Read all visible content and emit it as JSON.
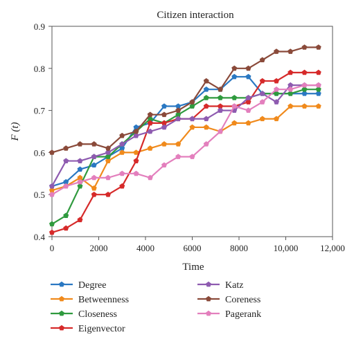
{
  "chart_data": {
    "type": "line",
    "title": "Citizen interaction",
    "xlabel": "Time",
    "ylabel": "F (t)",
    "xlim": [
      0,
      12000
    ],
    "ylim": [
      0.4,
      0.9
    ],
    "x_ticks": [
      "0",
      "2000",
      "4000",
      "6000",
      "8000",
      "10,000",
      "12,000"
    ],
    "y_ticks": [
      "0.4",
      "0.5",
      "0.6",
      "0.7",
      "0.8",
      "0.9"
    ],
    "x": [
      0,
      600,
      1200,
      1800,
      2400,
      3000,
      3600,
      4200,
      4800,
      5400,
      6000,
      6600,
      7200,
      7800,
      8400,
      9000,
      9600,
      10200,
      10800,
      11400
    ],
    "series": [
      {
        "name": "Degree",
        "color": "#2a78c2",
        "marker": "pentagon",
        "values": [
          0.52,
          0.53,
          0.56,
          0.57,
          0.59,
          0.61,
          0.66,
          0.67,
          0.71,
          0.71,
          0.72,
          0.75,
          0.75,
          0.78,
          0.78,
          0.74,
          0.74,
          0.74,
          0.74,
          0.74
        ]
      },
      {
        "name": "Betweenness",
        "color": "#f08a1c",
        "marker": "pentagon",
        "values": [
          0.51,
          0.52,
          0.54,
          0.515,
          0.58,
          0.6,
          0.6,
          0.61,
          0.62,
          0.62,
          0.66,
          0.66,
          0.65,
          0.67,
          0.67,
          0.68,
          0.68,
          0.71,
          0.71,
          0.71
        ]
      },
      {
        "name": "Closeness",
        "color": "#2f9a3e",
        "marker": "pentagon",
        "values": [
          0.43,
          0.45,
          0.52,
          0.59,
          0.59,
          0.62,
          0.65,
          0.68,
          0.67,
          0.69,
          0.71,
          0.73,
          0.73,
          0.73,
          0.73,
          0.74,
          0.74,
          0.74,
          0.75,
          0.75
        ]
      },
      {
        "name": "Eigenvector",
        "color": "#d62a2a",
        "marker": "pentagon",
        "values": [
          0.41,
          0.42,
          0.44,
          0.5,
          0.5,
          0.52,
          0.58,
          0.67,
          0.67,
          0.68,
          0.68,
          0.71,
          0.71,
          0.71,
          0.72,
          0.77,
          0.77,
          0.79,
          0.79,
          0.79
        ]
      },
      {
        "name": "Katz",
        "color": "#8e5bb0",
        "marker": "pentagon",
        "values": [
          0.52,
          0.58,
          0.58,
          0.59,
          0.6,
          0.62,
          0.64,
          0.65,
          0.66,
          0.68,
          0.68,
          0.68,
          0.7,
          0.7,
          0.73,
          0.74,
          0.72,
          0.76,
          0.76,
          0.76
        ]
      },
      {
        "name": "Coreness",
        "color": "#8a4a3a",
        "marker": "pentagon",
        "values": [
          0.6,
          0.61,
          0.62,
          0.62,
          0.61,
          0.64,
          0.65,
          0.69,
          0.69,
          0.7,
          0.72,
          0.77,
          0.75,
          0.8,
          0.8,
          0.82,
          0.84,
          0.84,
          0.85,
          0.85
        ]
      },
      {
        "name": "Pagerank",
        "color": "#e37fbd",
        "marker": "pentagon",
        "values": [
          0.5,
          0.52,
          0.53,
          0.54,
          0.54,
          0.55,
          0.55,
          0.54,
          0.57,
          0.59,
          0.59,
          0.62,
          0.65,
          0.71,
          0.7,
          0.72,
          0.75,
          0.75,
          0.76,
          0.76
        ]
      }
    ],
    "grid": false,
    "legend_position": "bottom, two columns"
  }
}
